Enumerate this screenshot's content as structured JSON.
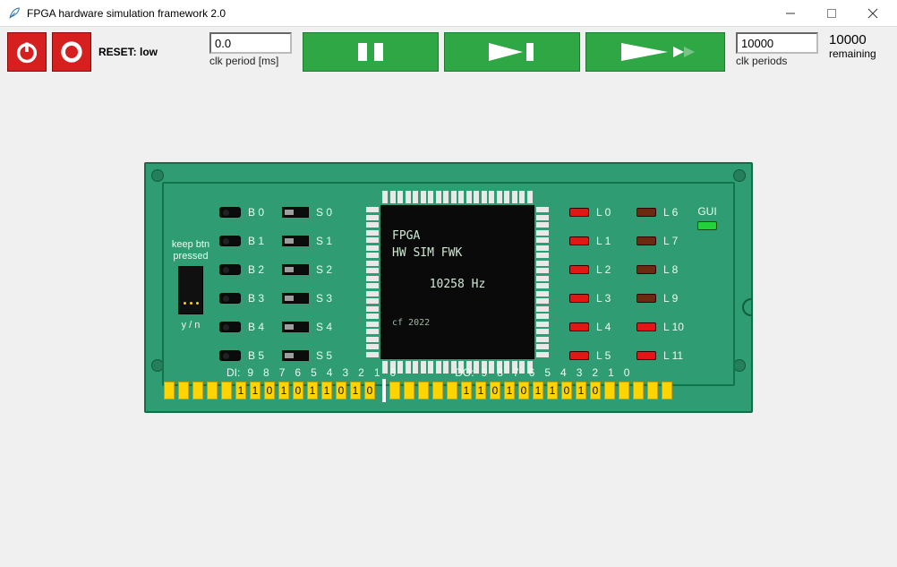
{
  "window": {
    "title": "FPGA hardware simulation framework 2.0"
  },
  "toolbar": {
    "reset_label": "RESET: low",
    "clk_period_value": "0.0",
    "clk_period_caption": "clk period [ms]",
    "clk_periods_value": "10000",
    "clk_periods_caption": "clk periods",
    "remaining_value": "10000",
    "remaining_caption": "remaining"
  },
  "board": {
    "keep_btn_text_line1": "keep btn",
    "keep_btn_text_line2": "pressed",
    "yn_label": "y / n",
    "buttons": [
      "B 0",
      "B 1",
      "B 2",
      "B 3",
      "B 4",
      "B 5"
    ],
    "switches": [
      "S 0",
      "S 1",
      "S 2",
      "S 3",
      "S 4",
      "S 5"
    ],
    "chip": {
      "line1": "FPGA",
      "line2": "HW SIM FWK",
      "freq": "10258 Hz",
      "copyright": "cf 2022"
    },
    "leds_a": [
      "L 0",
      "L 1",
      "L 2",
      "L 3",
      "L 4",
      "L 5"
    ],
    "leds_b": [
      "L 6",
      "L 7",
      "L 8",
      "L 9",
      "L 10",
      "L 11"
    ],
    "leds_b_state": [
      "dim",
      "dim",
      "dim",
      "dim",
      "red",
      "red"
    ],
    "gui_label": "GUI",
    "di_label": "DI:",
    "do_label": "DO:",
    "indices": [
      "9",
      "8",
      "7",
      "6",
      "5",
      "4",
      "3",
      "2",
      "1",
      "0"
    ],
    "di_values": [
      "1",
      "1",
      "0",
      "1",
      "0",
      "1",
      "1",
      "0",
      "1",
      "0"
    ],
    "do_values": [
      "1",
      "1",
      "0",
      "1",
      "0",
      "1",
      "1",
      "0",
      "1",
      "0"
    ]
  },
  "colors": {
    "pcb": "#2f9c73",
    "chip": "#0a0a0a",
    "led_on": "#e41515",
    "led_dim": "#6b2a0f",
    "led_green": "#23d13a",
    "pad": "#ffd400",
    "btn_red": "#d61f1f",
    "btn_green": "#2fa745"
  }
}
